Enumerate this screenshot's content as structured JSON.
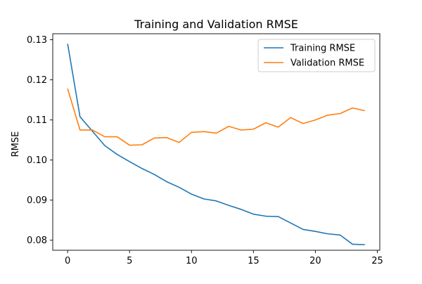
{
  "chart_data": {
    "type": "line",
    "title": "Training and Validation RMSE",
    "xlabel": "",
    "ylabel": "RMSE",
    "x": [
      0,
      1,
      2,
      3,
      4,
      5,
      6,
      7,
      8,
      9,
      10,
      11,
      12,
      13,
      14,
      15,
      16,
      17,
      18,
      19,
      20,
      21,
      22,
      23,
      24
    ],
    "xlim": [
      -1.2,
      25.2
    ],
    "ylim": [
      0.0775,
      0.1315
    ],
    "xticks": [
      0,
      5,
      10,
      15,
      20,
      25
    ],
    "yticks": [
      0.08,
      0.09,
      0.1,
      0.11,
      0.12,
      0.13
    ],
    "ytick_labels": [
      "0.08",
      "0.09",
      "0.10",
      "0.11",
      "0.12",
      "0.13"
    ],
    "grid": false,
    "legend_position": "top-right",
    "series": [
      {
        "name": "Training RMSE",
        "color": "#1f77b4",
        "values": [
          0.129,
          0.1108,
          0.1072,
          0.1036,
          0.1014,
          0.0996,
          0.0979,
          0.0964,
          0.0946,
          0.0932,
          0.0915,
          0.0903,
          0.0898,
          0.0887,
          0.0877,
          0.0865,
          0.086,
          0.0859,
          0.0843,
          0.0827,
          0.0822,
          0.0816,
          0.0813,
          0.079,
          0.0789
        ]
      },
      {
        "name": "Validation RMSE",
        "color": "#ff7f0e",
        "values": [
          0.1178,
          0.1075,
          0.1075,
          0.1058,
          0.1058,
          0.1037,
          0.1038,
          0.1055,
          0.1056,
          0.1044,
          0.1069,
          0.1071,
          0.1067,
          0.1084,
          0.1075,
          0.1077,
          0.1093,
          0.1082,
          0.1106,
          0.1091,
          0.11,
          0.1112,
          0.1116,
          0.113,
          0.1123
        ]
      }
    ]
  }
}
